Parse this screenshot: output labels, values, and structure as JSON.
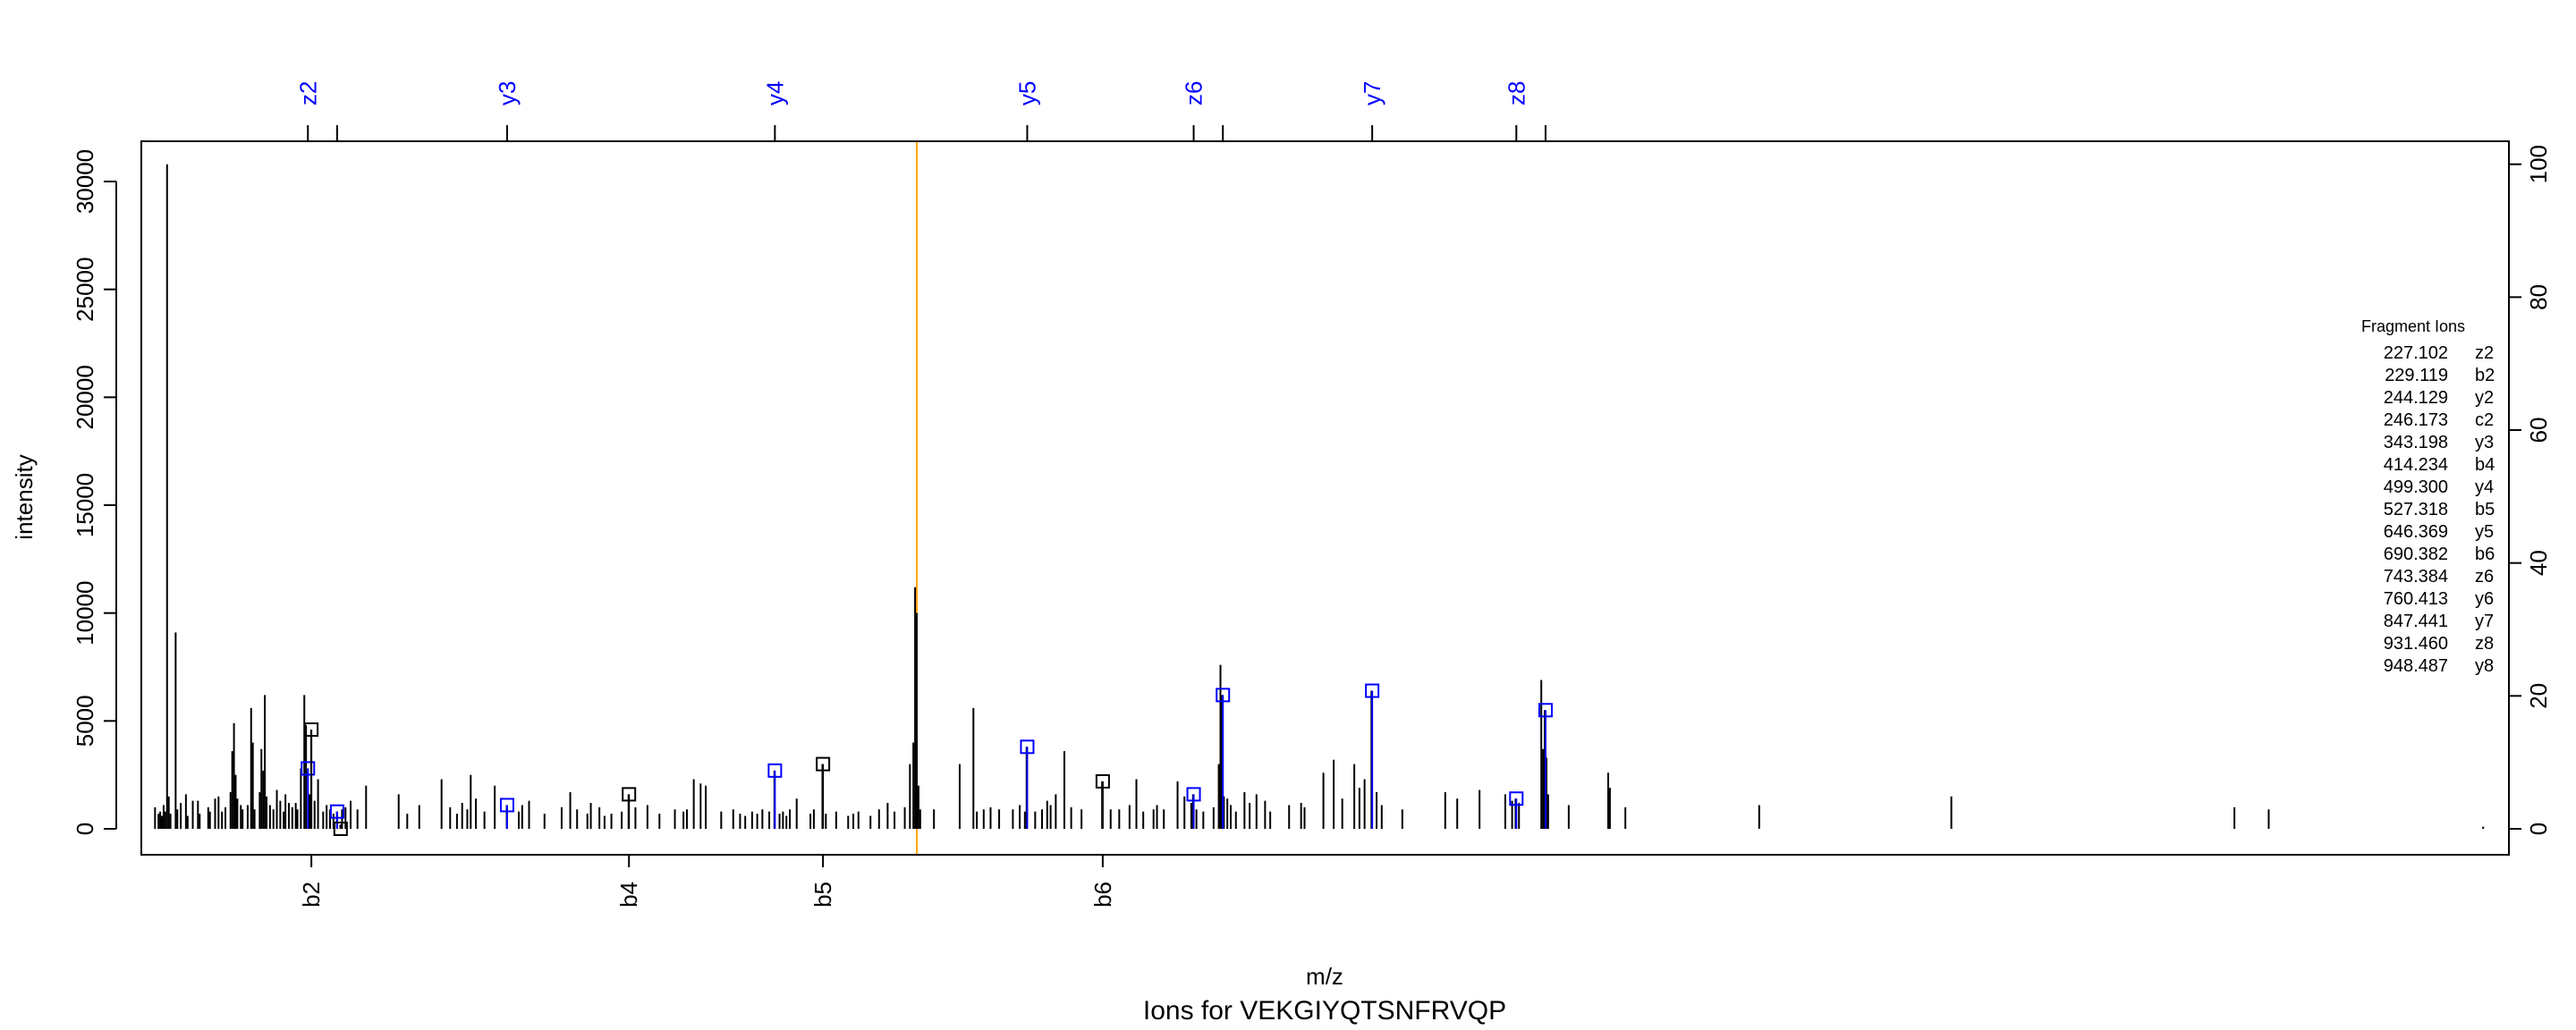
{
  "chart_data": {
    "type": "bar",
    "title": "Ions for VEKGIYQTSNFRVQP",
    "xlabel": "m/z",
    "ylabel": "intensity",
    "xlim": [
      130,
      1510
    ],
    "ylim": [
      0,
      31000
    ],
    "right_axis": {
      "ticks": [
        0,
        20,
        40,
        60,
        80,
        100
      ]
    },
    "left_axis": {
      "ticks": [
        0,
        5000,
        10000,
        15000,
        20000,
        25000,
        30000
      ]
    },
    "grid": false,
    "precursor_mz": 582,
    "colors": {
      "peak": "#000000",
      "ion_match": "#0000ff",
      "precursor_line": "#ffa500"
    },
    "top_labels": [
      {
        "label": "z2",
        "mz": 227.102
      },
      {
        "label": "y3",
        "mz": 343.198
      },
      {
        "label": "y4",
        "mz": 499.3
      },
      {
        "label": "y5",
        "mz": 646.369
      },
      {
        "label": "z6",
        "mz": 743.384
      },
      {
        "label": "y7",
        "mz": 847.441
      },
      {
        "label": "z8",
        "mz": 931.46
      }
    ],
    "top_extra_ticks": [
      244.129,
      760.413,
      948.487
    ],
    "bottom_labels": [
      {
        "label": "b2",
        "mz": 229.119
      },
      {
        "label": "b4",
        "mz": 414.234
      },
      {
        "label": "b5",
        "mz": 527.318
      },
      {
        "label": "b6",
        "mz": 690.382
      }
    ],
    "legend": {
      "title": "Fragment Ions",
      "placement": "right",
      "entries": [
        {
          "mz": "227.102",
          "ion": "z2"
        },
        {
          "mz": "229.119",
          "ion": "b2"
        },
        {
          "mz": "244.129",
          "ion": "y2"
        },
        {
          "mz": "246.173",
          "ion": "c2"
        },
        {
          "mz": "343.198",
          "ion": "y3"
        },
        {
          "mz": "414.234",
          "ion": "b4"
        },
        {
          "mz": "499.300",
          "ion": "y4"
        },
        {
          "mz": "527.318",
          "ion": "b5"
        },
        {
          "mz": "646.369",
          "ion": "y5"
        },
        {
          "mz": "690.382",
          "ion": "b6"
        },
        {
          "mz": "743.384",
          "ion": "z6"
        },
        {
          "mz": "760.413",
          "ion": "y6"
        },
        {
          "mz": "847.441",
          "ion": "y7"
        },
        {
          "mz": "931.460",
          "ion": "z8"
        },
        {
          "mz": "948.487",
          "ion": "y8"
        }
      ]
    },
    "matched_ions": [
      {
        "ion": "z2",
        "mz": 227.102,
        "intensity": 2800,
        "color": "#0000ff"
      },
      {
        "ion": "b2",
        "mz": 229.119,
        "intensity": 4600,
        "color": "#000000"
      },
      {
        "ion": "y2",
        "mz": 244.129,
        "intensity": 800,
        "color": "#0000ff"
      },
      {
        "ion": "c2",
        "mz": 246.173,
        "intensity": 0,
        "color": "#000000"
      },
      {
        "ion": "y3",
        "mz": 343.198,
        "intensity": 1100,
        "color": "#0000ff"
      },
      {
        "ion": "b4",
        "mz": 414.234,
        "intensity": 1600,
        "color": "#000000"
      },
      {
        "ion": "y4",
        "mz": 499.3,
        "intensity": 2700,
        "color": "#0000ff"
      },
      {
        "ion": "b5",
        "mz": 527.318,
        "intensity": 3000,
        "color": "#000000"
      },
      {
        "ion": "y5",
        "mz": 646.369,
        "intensity": 3800,
        "color": "#0000ff"
      },
      {
        "ion": "b6",
        "mz": 690.382,
        "intensity": 2200,
        "color": "#000000"
      },
      {
        "ion": "z6",
        "mz": 743.384,
        "intensity": 1600,
        "color": "#0000ff"
      },
      {
        "ion": "y6",
        "mz": 760.413,
        "intensity": 6200,
        "color": "#0000ff"
      },
      {
        "ion": "y7",
        "mz": 847.441,
        "intensity": 6400,
        "color": "#0000ff"
      },
      {
        "ion": "z8",
        "mz": 931.46,
        "intensity": 1400,
        "color": "#0000ff"
      },
      {
        "ion": "y8",
        "mz": 948.487,
        "intensity": 5500,
        "color": "#0000ff"
      }
    ],
    "peaks": [
      [
        138,
        1000
      ],
      [
        140,
        700
      ],
      [
        141,
        800
      ],
      [
        142,
        600
      ],
      [
        143,
        1100
      ],
      [
        144,
        800
      ],
      [
        145,
        30800
      ],
      [
        146,
        1500
      ],
      [
        147,
        700
      ],
      [
        150,
        9100
      ],
      [
        151,
        900
      ],
      [
        153,
        1200
      ],
      [
        156,
        1600
      ],
      [
        157,
        600
      ],
      [
        160,
        1300
      ],
      [
        163,
        1300
      ],
      [
        164,
        700
      ],
      [
        169,
        1000
      ],
      [
        170,
        800
      ],
      [
        173,
        1400
      ],
      [
        175,
        1500
      ],
      [
        177,
        800
      ],
      [
        179,
        1000
      ],
      [
        182,
        1700
      ],
      [
        183,
        3600
      ],
      [
        184,
        4900
      ],
      [
        185,
        2500
      ],
      [
        186,
        1400
      ],
      [
        188,
        1100
      ],
      [
        189,
        900
      ],
      [
        192,
        1100
      ],
      [
        194,
        5600
      ],
      [
        195,
        4000
      ],
      [
        196,
        900
      ],
      [
        199,
        1700
      ],
      [
        200,
        3700
      ],
      [
        201,
        2700
      ],
      [
        202,
        6200
      ],
      [
        203,
        1500
      ],
      [
        205,
        1100
      ],
      [
        207,
        900
      ],
      [
        209,
        1800
      ],
      [
        211,
        1300
      ],
      [
        213,
        800
      ],
      [
        214,
        1600
      ],
      [
        216,
        1200
      ],
      [
        218,
        1000
      ],
      [
        220,
        1200
      ],
      [
        221,
        900
      ],
      [
        223,
        2800
      ],
      [
        225,
        6200
      ],
      [
        226,
        4800
      ],
      [
        228,
        1600
      ],
      [
        229,
        4600
      ],
      [
        231,
        1300
      ],
      [
        233,
        2300
      ],
      [
        236,
        800
      ],
      [
        238,
        1100
      ],
      [
        240,
        900
      ],
      [
        242,
        700
      ],
      [
        244,
        800
      ],
      [
        246,
        200
      ],
      [
        247,
        900
      ],
      [
        249,
        1000
      ],
      [
        252,
        1300
      ],
      [
        256,
        900
      ],
      [
        261,
        2000
      ],
      [
        280,
        1600
      ],
      [
        285,
        700
      ],
      [
        292,
        1100
      ],
      [
        305,
        2300
      ],
      [
        310,
        1000
      ],
      [
        314,
        700
      ],
      [
        317,
        1200
      ],
      [
        320,
        900
      ],
      [
        322,
        2500
      ],
      [
        325,
        1400
      ],
      [
        330,
        800
      ],
      [
        336,
        2000
      ],
      [
        343,
        1100
      ],
      [
        350,
        800
      ],
      [
        352,
        1100
      ],
      [
        356,
        1300
      ],
      [
        365,
        700
      ],
      [
        375,
        1000
      ],
      [
        380,
        1700
      ],
      [
        384,
        900
      ],
      [
        390,
        700
      ],
      [
        392,
        1200
      ],
      [
        397,
        1000
      ],
      [
        400,
        600
      ],
      [
        404,
        700
      ],
      [
        410,
        800
      ],
      [
        414,
        1600
      ],
      [
        418,
        1000
      ],
      [
        425,
        1100
      ],
      [
        432,
        700
      ],
      [
        441,
        900
      ],
      [
        446,
        800
      ],
      [
        448,
        900
      ],
      [
        452,
        2300
      ],
      [
        456,
        2100
      ],
      [
        459,
        2000
      ],
      [
        468,
        800
      ],
      [
        475,
        900
      ],
      [
        479,
        700
      ],
      [
        482,
        600
      ],
      [
        486,
        800
      ],
      [
        489,
        700
      ],
      [
        492,
        900
      ],
      [
        496,
        800
      ],
      [
        499,
        2700
      ],
      [
        502,
        700
      ],
      [
        504,
        800
      ],
      [
        506,
        600
      ],
      [
        508,
        900
      ],
      [
        512,
        1400
      ],
      [
        520,
        700
      ],
      [
        522,
        900
      ],
      [
        527,
        3000
      ],
      [
        529,
        700
      ],
      [
        535,
        800
      ],
      [
        542,
        600
      ],
      [
        545,
        700
      ],
      [
        548,
        800
      ],
      [
        555,
        600
      ],
      [
        560,
        900
      ],
      [
        565,
        1200
      ],
      [
        569,
        800
      ],
      [
        575,
        1000
      ],
      [
        578,
        3000
      ],
      [
        580,
        4000
      ],
      [
        581,
        11200
      ],
      [
        582,
        10000
      ],
      [
        583,
        2000
      ],
      [
        584,
        900
      ],
      [
        592,
        900
      ],
      [
        607,
        3000
      ],
      [
        615,
        5600
      ],
      [
        617,
        800
      ],
      [
        621,
        900
      ],
      [
        625,
        1000
      ],
      [
        630,
        900
      ],
      [
        638,
        900
      ],
      [
        642,
        1100
      ],
      [
        645,
        800
      ],
      [
        646,
        3800
      ],
      [
        651,
        800
      ],
      [
        655,
        900
      ],
      [
        658,
        1300
      ],
      [
        660,
        1100
      ],
      [
        663,
        1600
      ],
      [
        668,
        3600
      ],
      [
        672,
        1000
      ],
      [
        678,
        900
      ],
      [
        690,
        2200
      ],
      [
        695,
        900
      ],
      [
        700,
        900
      ],
      [
        706,
        1100
      ],
      [
        710,
        2300
      ],
      [
        714,
        800
      ],
      [
        720,
        900
      ],
      [
        722,
        1100
      ],
      [
        726,
        900
      ],
      [
        734,
        2200
      ],
      [
        738,
        1500
      ],
      [
        742,
        1200
      ],
      [
        743,
        1600
      ],
      [
        745,
        900
      ],
      [
        749,
        800
      ],
      [
        755,
        1000
      ],
      [
        758,
        3000
      ],
      [
        759,
        7600
      ],
      [
        760,
        6200
      ],
      [
        761,
        1500
      ],
      [
        763,
        1400
      ],
      [
        765,
        1100
      ],
      [
        768,
        800
      ],
      [
        773,
        1700
      ],
      [
        776,
        1200
      ],
      [
        780,
        1600
      ],
      [
        785,
        1300
      ],
      [
        788,
        800
      ],
      [
        799,
        1100
      ],
      [
        806,
        1200
      ],
      [
        808,
        1000
      ],
      [
        819,
        2600
      ],
      [
        825,
        3200
      ],
      [
        830,
        1400
      ],
      [
        837,
        3000
      ],
      [
        840,
        1900
      ],
      [
        843,
        2300
      ],
      [
        847,
        6400
      ],
      [
        850,
        1700
      ],
      [
        853,
        1100
      ],
      [
        865,
        900
      ],
      [
        890,
        1700
      ],
      [
        897,
        1400
      ],
      [
        910,
        1800
      ],
      [
        925,
        1600
      ],
      [
        929,
        1300
      ],
      [
        931,
        1400
      ],
      [
        933,
        1200
      ],
      [
        946,
        6900
      ],
      [
        947,
        3700
      ],
      [
        948,
        5500
      ],
      [
        949,
        3300
      ],
      [
        950,
        1600
      ],
      [
        962,
        1100
      ],
      [
        985,
        2600
      ],
      [
        986,
        1900
      ],
      [
        995,
        1000
      ],
      [
        1073,
        1100
      ],
      [
        1185,
        1500
      ],
      [
        1350,
        1000
      ],
      [
        1370,
        900
      ],
      [
        1495,
        100
      ]
    ]
  }
}
